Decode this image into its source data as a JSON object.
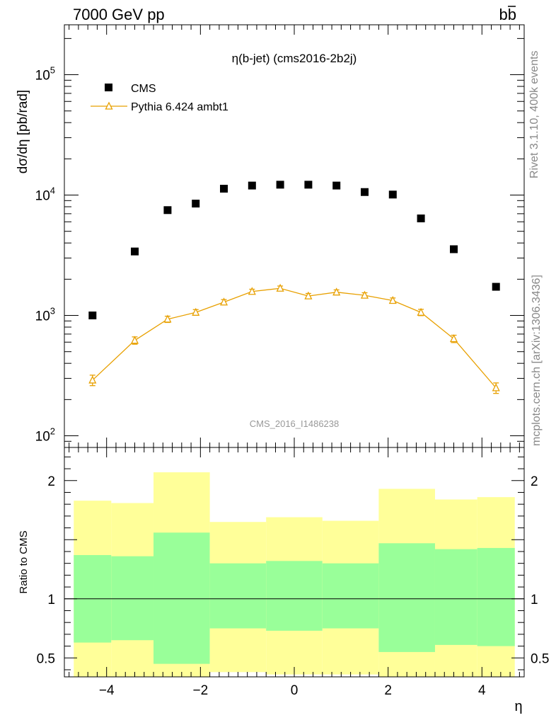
{
  "header": {
    "left": "7000 GeV pp",
    "right_main": "b",
    "right_bar": "b"
  },
  "side": {
    "rivet": "Rivet 3.1.10,  400k events",
    "mcplots": "mcplots.cern.ch [arXiv:1306.3436]"
  },
  "chart_data": [
    {
      "type": "scatter",
      "title": "η(b-jet) (cms2016-2b2j)",
      "ylabel": "dσ/dη [pb/rad]",
      "watermark": "CMS_2016_I1486238",
      "yscale": "log",
      "ylim": [
        80,
        260000
      ],
      "xlim": [
        -4.9,
        4.9
      ],
      "yticks": [
        {
          "v": 100,
          "base": "10",
          "exp": "2"
        },
        {
          "v": 1000,
          "base": "10",
          "exp": "3"
        },
        {
          "v": 10000,
          "base": "10",
          "exp": "4"
        },
        {
          "v": 100000,
          "base": "10",
          "exp": "5"
        }
      ],
      "legend": {
        "position": "top-left"
      },
      "series": [
        {
          "name": "CMS",
          "style": "black-square",
          "color": "#000000",
          "x": [
            -4.3,
            -3.4,
            -2.7,
            -2.1,
            -1.5,
            -0.9,
            -0.3,
            0.3,
            0.9,
            1.5,
            2.1,
            2.7,
            3.4,
            4.3
          ],
          "y": [
            1000,
            3400,
            7500,
            8500,
            11300,
            12000,
            12200,
            12200,
            12000,
            10600,
            10100,
            6400,
            3550,
            1730
          ]
        },
        {
          "name": "Pythia 6.424 ambt1",
          "style": "orange-triangle-line",
          "color": "#e8a000",
          "x": [
            -4.3,
            -3.4,
            -2.7,
            -2.1,
            -1.5,
            -0.9,
            -0.3,
            0.3,
            0.9,
            1.5,
            2.1,
            2.7,
            3.4,
            4.3
          ],
          "y": [
            290,
            620,
            930,
            1060,
            1290,
            1580,
            1680,
            1450,
            1560,
            1470,
            1330,
            1060,
            640,
            250
          ],
          "err": [
            0.1,
            0.07,
            0.06,
            0.055,
            0.05,
            0.045,
            0.045,
            0.05,
            0.045,
            0.05,
            0.05,
            0.06,
            0.07,
            0.1
          ]
        }
      ]
    },
    {
      "type": "area",
      "xlabel": "η",
      "ylabel": "Ratio to CMS",
      "ylim": [
        0.34,
        2.28
      ],
      "xlim": [
        -4.9,
        4.9
      ],
      "xticks": [
        {
          "v": -4,
          "label": "−4"
        },
        {
          "v": -2,
          "label": "−2"
        },
        {
          "v": 0,
          "label": "0"
        },
        {
          "v": 2,
          "label": "2"
        },
        {
          "v": 4,
          "label": "4"
        }
      ],
      "yticks": [
        {
          "v": 0.5,
          "label": "0.5"
        },
        {
          "v": 1,
          "label": "1"
        },
        {
          "v": 2,
          "label": "2"
        }
      ],
      "reference": 1,
      "bands": {
        "colors": {
          "outer": "#ffff99",
          "inner": "#99ff99"
        },
        "bins": [
          {
            "lo": -4.7,
            "hi": -3.9,
            "outer": [
              0.34,
              1.83
            ],
            "inner": [
              0.63,
              1.37
            ]
          },
          {
            "lo": -3.9,
            "hi": -3.0,
            "outer": [
              0.34,
              1.81
            ],
            "inner": [
              0.65,
              1.36
            ]
          },
          {
            "lo": -3.0,
            "hi": -1.8,
            "outer": [
              0.34,
              2.07
            ],
            "inner": [
              0.45,
              1.56
            ]
          },
          {
            "lo": -1.8,
            "hi": -0.6,
            "outer": [
              0.38,
              1.65
            ],
            "inner": [
              0.75,
              1.3
            ]
          },
          {
            "lo": -0.6,
            "hi": 0.6,
            "outer": [
              0.36,
              1.69
            ],
            "inner": [
              0.73,
              1.32
            ]
          },
          {
            "lo": 0.6,
            "hi": 1.8,
            "outer": [
              0.36,
              1.66
            ],
            "inner": [
              0.75,
              1.3
            ]
          },
          {
            "lo": 1.8,
            "hi": 3.0,
            "outer": [
              0.34,
              1.93
            ],
            "inner": [
              0.55,
              1.47
            ]
          },
          {
            "lo": 3.0,
            "hi": 3.9,
            "outer": [
              0.34,
              1.84
            ],
            "inner": [
              0.61,
              1.42
            ]
          },
          {
            "lo": 3.9,
            "hi": 4.7,
            "outer": [
              0.34,
              1.86
            ],
            "inner": [
              0.6,
              1.43
            ]
          }
        ]
      }
    }
  ]
}
